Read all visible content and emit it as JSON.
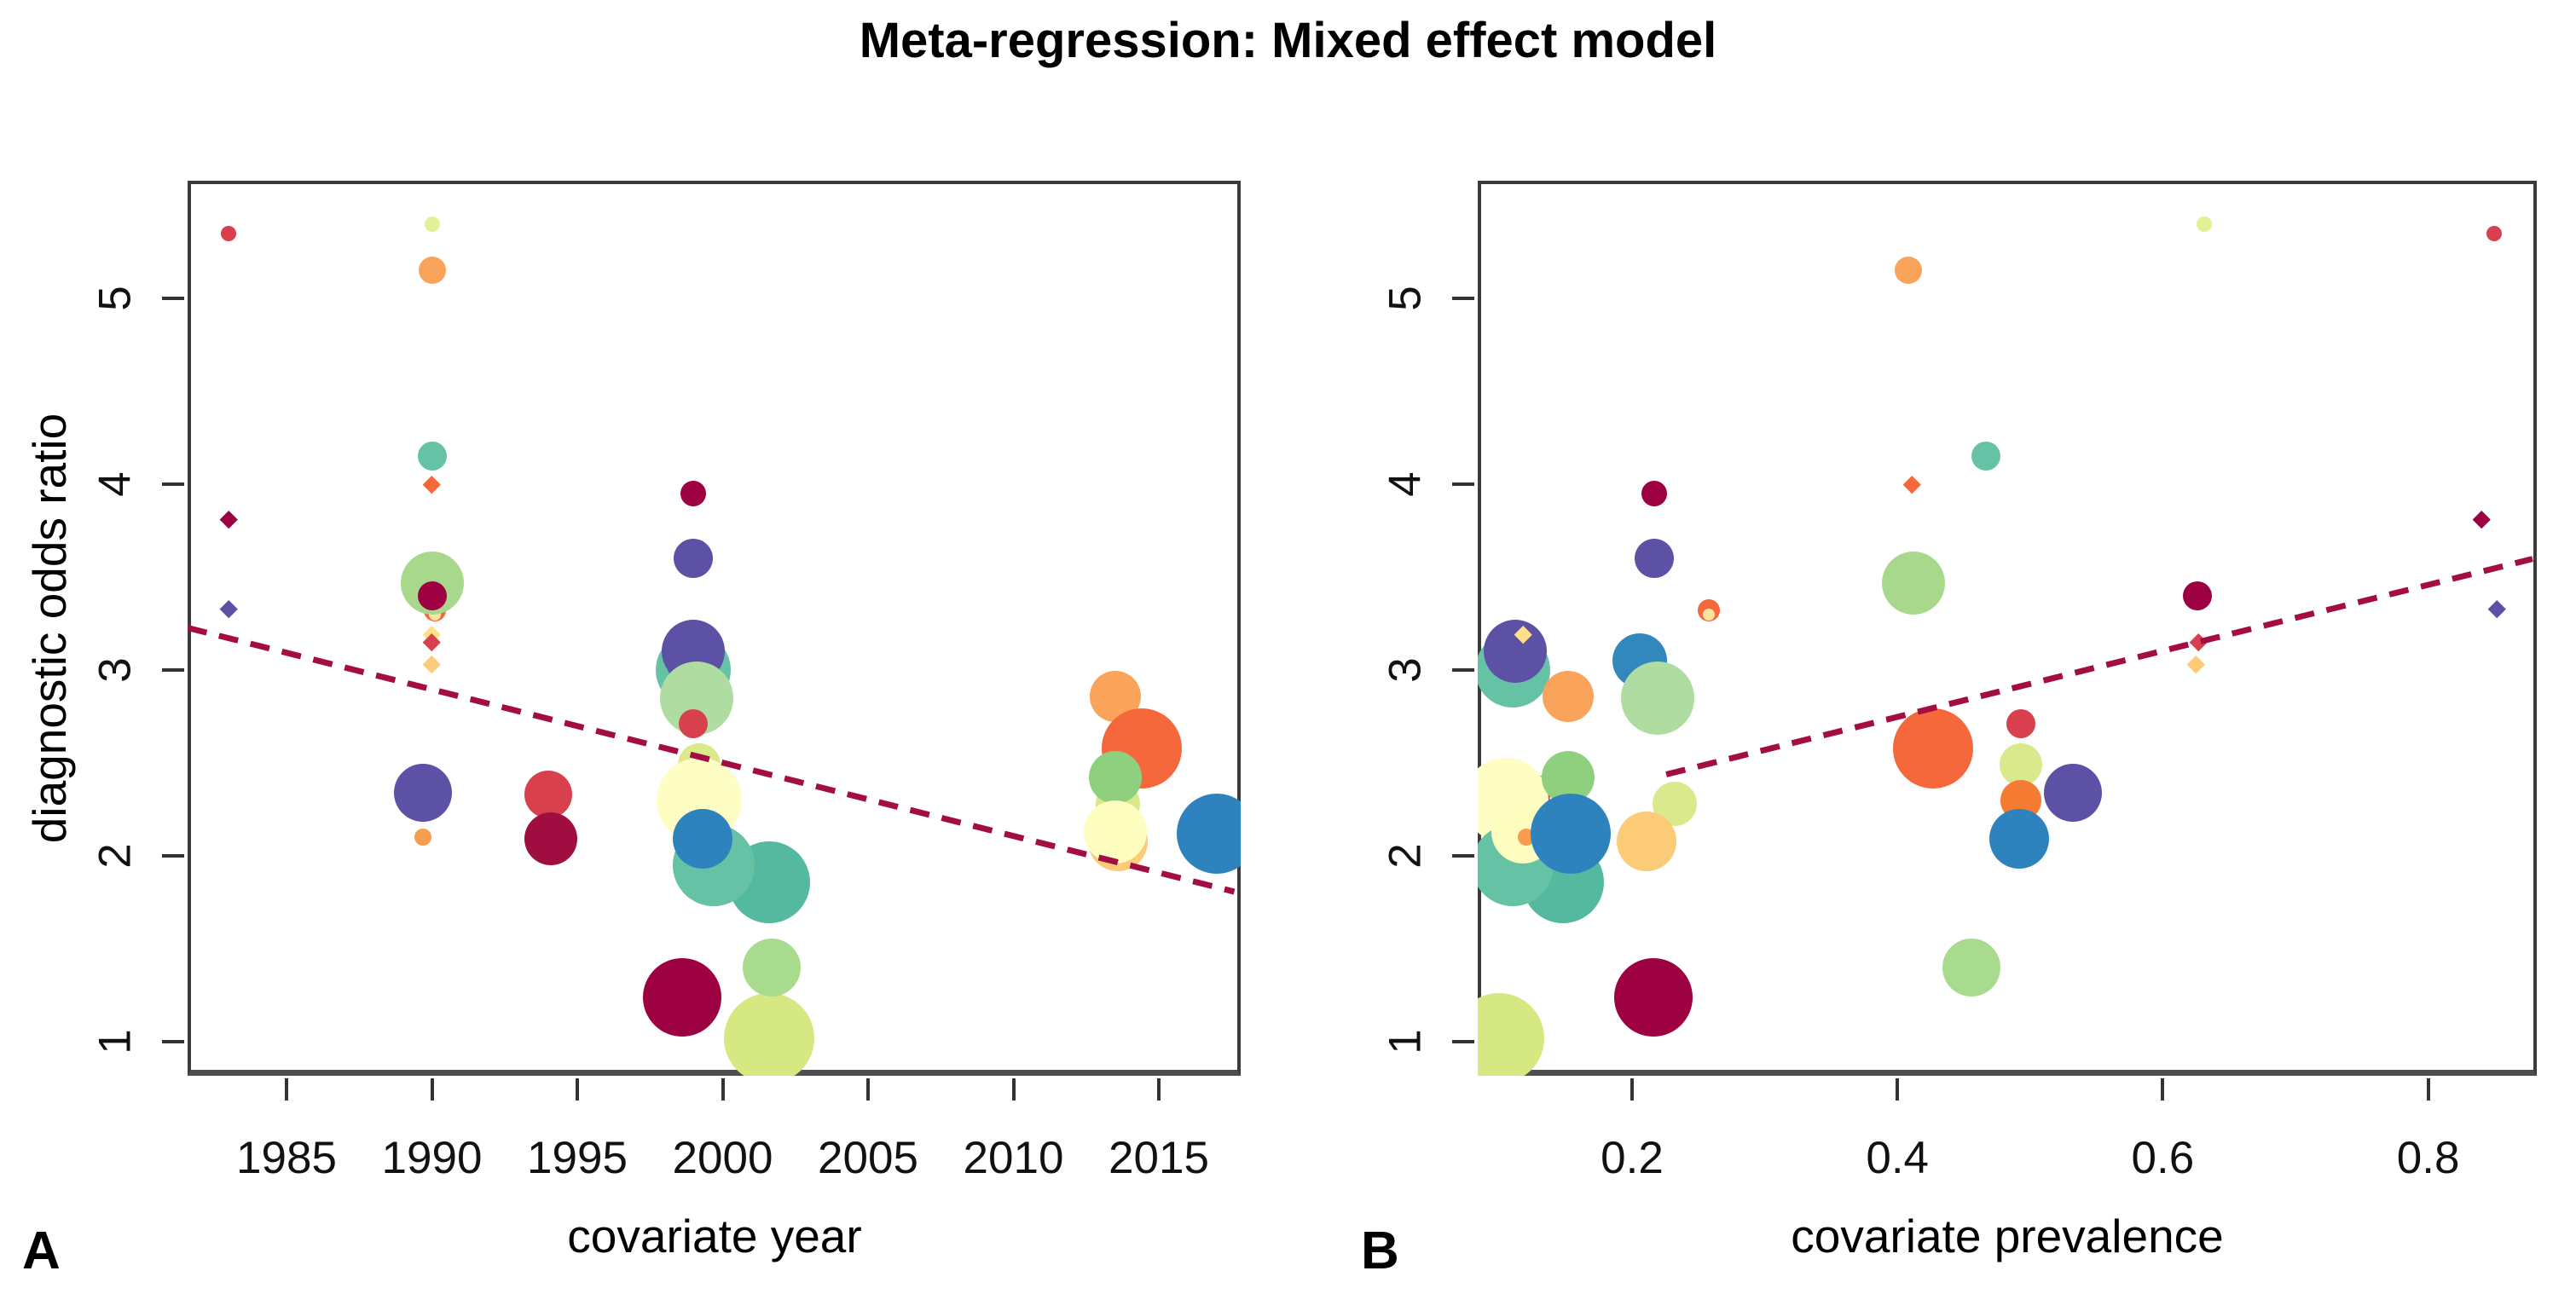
{
  "title": "Meta-regression: Mixed effect model",
  "ylabel": "diagnostic odds ratio",
  "panels": [
    {
      "label": "A",
      "xlabel": "covariate year"
    },
    {
      "label": "B",
      "xlabel": "covariate prevalence"
    }
  ],
  "colors": {
    "regression_line": "#A40D44",
    "border": "#3b3b3b",
    "text": "#000000"
  },
  "chart_data": [
    {
      "type": "scatter",
      "subtype": "bubble",
      "title": "Meta-regression: Mixed effect model",
      "xlabel": "covariate year",
      "ylabel": "diagnostic odds ratio",
      "xlim": [
        1981.5,
        2018.3
      ],
      "ylim": [
        0.82,
        5.63
      ],
      "xticks": [
        1985,
        1990,
        1995,
        2000,
        2005,
        2010,
        2015
      ],
      "yticks": [
        1,
        2,
        3,
        4,
        5
      ],
      "grid": false,
      "legend": "none",
      "x_key": "year",
      "regression": {
        "x1": 1981.6,
        "y1": 3.23,
        "x2": 2017.6,
        "y2": 1.81,
        "style": "dashed",
        "color": "#A40D44"
      }
    },
    {
      "type": "scatter",
      "subtype": "bubble",
      "title": "Meta-regression: Mixed effect model",
      "xlabel": "covariate prevalence",
      "ylabel": "diagnostic odds ratio",
      "xlim": [
        0.084,
        0.882
      ],
      "ylim": [
        0.82,
        5.63
      ],
      "xticks": [
        0.2,
        0.4,
        0.6,
        0.8
      ],
      "yticks": [
        1,
        2,
        3,
        4,
        5
      ],
      "grid": false,
      "legend": "none",
      "x_key": "prev",
      "regression": {
        "x1": 0.226,
        "y1": 2.44,
        "x2": 0.879,
        "y2": 3.6,
        "style": "dashed",
        "color": "#A40D44"
      }
    }
  ],
  "studies": [
    {
      "id": "m01",
      "color": "#D6E882",
      "shape": "circle",
      "r": 53,
      "dor": 1.02,
      "year": 2001.6,
      "prev": 0.1
    },
    {
      "id": "m02",
      "color": "#55B99F",
      "shape": "circle",
      "r": 48,
      "dor": 1.86,
      "year": 2001.6,
      "prev": 0.148
    },
    {
      "id": "m03",
      "color": "#D9404E",
      "shape": "circle",
      "r": 28,
      "dor": 2.33,
      "year": 1994.0,
      "prev": 0.12
    },
    {
      "id": "m04",
      "color": "#A00D41",
      "shape": "circle",
      "r": 31,
      "dor": 2.09,
      "year": 1994.1,
      "prev": 0.135
    },
    {
      "id": "m05",
      "color": "#9E0142",
      "shape": "circle",
      "r": 46,
      "dor": 1.24,
      "year": 1998.6,
      "prev": 0.216
    },
    {
      "id": "m06",
      "color": "#D9E98B",
      "shape": "circle",
      "r": 25,
      "dor": 2.49,
      "year": 1999.2,
      "prev": 0.493
    },
    {
      "id": "m07",
      "color": "#F57B33",
      "shape": "circle",
      "r": 24,
      "dor": 2.3,
      "year": 1999.6,
      "prev": 0.493
    },
    {
      "id": "m08",
      "color": "#FEFEC4",
      "shape": "circle",
      "r": 50,
      "dor": 2.3,
      "year": 1999.2,
      "prev": 0.105
    },
    {
      "id": "m09",
      "color": "#66C2A5",
      "shape": "circle",
      "r": 48,
      "dor": 1.95,
      "year": 1999.7,
      "prev": 0.11
    },
    {
      "id": "m10",
      "color": "#2E83BE",
      "shape": "circle",
      "r": 35,
      "dor": 2.09,
      "year": 1999.3,
      "prev": 0.492
    },
    {
      "id": "m11",
      "color": "#F4683C",
      "shape": "circle",
      "r": 13,
      "dor": 3.32,
      "year": 1990.1,
      "prev": 0.258
    },
    {
      "id": "m12",
      "color": "#FBE3A0",
      "shape": "circle",
      "r": 7,
      "dor": 3.3,
      "year": 1990.1,
      "prev": 0.258
    },
    {
      "id": "m13",
      "color": "#A8D88B",
      "shape": "circle",
      "r": 37,
      "dor": 3.47,
      "year": 1990.0,
      "prev": 0.412
    },
    {
      "id": "m14",
      "color": "#9E0142",
      "shape": "circle",
      "r": 17,
      "dor": 3.4,
      "year": 1990.0,
      "prev": 0.626
    },
    {
      "id": "m15",
      "color": "#66C2A5",
      "shape": "circle",
      "r": 44,
      "dor": 3.0,
      "year": 1999.0,
      "prev": 0.11
    },
    {
      "id": "m16",
      "color": "#3288BD",
      "shape": "circle",
      "r": 32,
      "dor": 3.05,
      "year": 1999.0,
      "prev": 0.206
    },
    {
      "id": "m17",
      "color": "#5C51A5",
      "shape": "circle",
      "r": 37,
      "dor": 3.1,
      "year": 1999.0,
      "prev": 0.112
    },
    {
      "id": "m18",
      "color": "#F9A35B",
      "shape": "circle",
      "r": 30,
      "dor": 2.86,
      "year": 2013.5,
      "prev": 0.152
    },
    {
      "id": "m19",
      "color": "#F4683C",
      "shape": "circle",
      "r": 47,
      "dor": 2.58,
      "year": 2014.4,
      "prev": 0.427
    },
    {
      "id": "m20",
      "color": "#D9E98B",
      "shape": "circle",
      "r": 26,
      "dor": 2.28,
      "year": 2013.6,
      "prev": 0.232
    },
    {
      "id": "m21",
      "color": "#8FD07E",
      "shape": "circle",
      "r": 31,
      "dor": 2.42,
      "year": 2013.5,
      "prev": 0.152
    },
    {
      "id": "m22",
      "color": "#FBCB77",
      "shape": "circle",
      "r": 35,
      "dor": 2.08,
      "year": 2013.6,
      "prev": 0.211
    },
    {
      "id": "m23",
      "color": "#FEFDC0",
      "shape": "circle",
      "r": 37,
      "dor": 2.13,
      "year": 2013.5,
      "prev": 0.118
    },
    {
      "id": "m24",
      "color": "#AFDCA0",
      "shape": "circle",
      "r": 43,
      "dor": 2.85,
      "year": 1999.1,
      "prev": 0.219
    },
    {
      "id": "m25",
      "color": "#D9404E",
      "shape": "circle",
      "r": 17,
      "dor": 2.71,
      "year": 1999.0,
      "prev": 0.493
    },
    {
      "id": "m26",
      "color": "#5C51A5",
      "shape": "circle",
      "r": 34,
      "dor": 2.34,
      "year": 1989.7,
      "prev": 0.532
    },
    {
      "id": "m27",
      "color": "#F89C4F",
      "shape": "circle",
      "r": 10,
      "dor": 2.1,
      "year": 1989.7,
      "prev": 0.12
    },
    {
      "id": "m28",
      "color": "#5C51A5",
      "shape": "circle",
      "r": 23,
      "dor": 3.6,
      "year": 1999.0,
      "prev": 0.217
    },
    {
      "id": "m29",
      "color": "#9E0142",
      "shape": "circle",
      "r": 15,
      "dor": 3.95,
      "year": 1999.0,
      "prev": 0.217
    },
    {
      "id": "m30",
      "color": "#FEE08B",
      "shape": "diamond",
      "r": 10,
      "dor": 3.19,
      "year": 1990.0,
      "prev": 0.118
    },
    {
      "id": "m31",
      "color": "#D9404E",
      "shape": "diamond",
      "r": 10,
      "dor": 3.15,
      "year": 1990.0,
      "prev": 0.627
    },
    {
      "id": "m32",
      "color": "#FBCB77",
      "shape": "diamond",
      "r": 10,
      "dor": 3.03,
      "year": 1990.0,
      "prev": 0.625
    },
    {
      "id": "m33",
      "color": "#A9DB8E",
      "shape": "circle",
      "r": 34,
      "dor": 1.4,
      "year": 2001.7,
      "prev": 0.456
    },
    {
      "id": "m34",
      "color": "#2E83BE",
      "shape": "circle",
      "r": 47,
      "dor": 2.12,
      "year": 2017.0,
      "prev": 0.154
    },
    {
      "id": "m35",
      "color": "#66C2A5",
      "shape": "circle",
      "r": 17,
      "dor": 4.15,
      "year": 1990.0,
      "prev": 0.467
    },
    {
      "id": "m36",
      "color": "#F4683C",
      "shape": "diamond",
      "r": 10,
      "dor": 4.0,
      "year": 1990.0,
      "prev": 0.411
    },
    {
      "id": "m37",
      "color": "#F9A35B",
      "shape": "circle",
      "r": 16,
      "dor": 5.15,
      "year": 1990.0,
      "prev": 0.408
    },
    {
      "id": "m38",
      "color": "#E2F195",
      "shape": "circle",
      "r": 9,
      "dor": 5.4,
      "year": 1990.0,
      "prev": 0.631
    },
    {
      "id": "m39",
      "color": "#D9404E",
      "shape": "circle",
      "r": 9,
      "dor": 5.35,
      "year": 1983.0,
      "prev": 0.85
    },
    {
      "id": "m40",
      "color": "#9E0142",
      "shape": "diamond",
      "r": 10,
      "dor": 3.81,
      "year": 1983.0,
      "prev": 0.84
    },
    {
      "id": "m41",
      "color": "#5C51A5",
      "shape": "diamond",
      "r": 10,
      "dor": 3.33,
      "year": 1983.0,
      "prev": 0.852
    }
  ]
}
